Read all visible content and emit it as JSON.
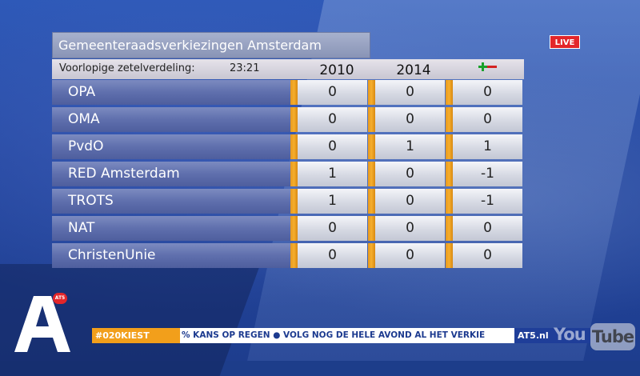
{
  "board": {
    "title": "Gemeenteraadsverkiezingen Amsterdam",
    "subtitle": "Voorlopige zetelverdeling:",
    "time": "23:21",
    "columns": [
      "2010",
      "2014"
    ],
    "delta_icon": "plus-minus-icon",
    "rows": [
      {
        "party": "OPA",
        "v2010": "0",
        "v2014": "0",
        "delta": "0"
      },
      {
        "party": "OMA",
        "v2010": "0",
        "v2014": "0",
        "delta": "0"
      },
      {
        "party": "PvdO",
        "v2010": "0",
        "v2014": "1",
        "delta": "1"
      },
      {
        "party": "RED Amsterdam",
        "v2010": "1",
        "v2014": "0",
        "delta": "-1"
      },
      {
        "party": "TROTS",
        "v2010": "1",
        "v2014": "0",
        "delta": "-1"
      },
      {
        "party": "NAT",
        "v2010": "0",
        "v2014": "0",
        "delta": "0"
      },
      {
        "party": "ChristenUnie",
        "v2010": "0",
        "v2014": "0",
        "delta": "0"
      }
    ]
  },
  "live_badge": "LIVE",
  "logo": {
    "letter_icon": "at5-a-logo-icon",
    "badge": "AT5"
  },
  "ticker": {
    "hashtag": "#020KIEST",
    "text": "% KANS OP REGEN ● VOLG NOG DE HELE AVOND AL HET VERKIE",
    "site": "AT5.nl"
  },
  "watermark": {
    "you": "You",
    "tube": "Tube"
  },
  "colors": {
    "separator": "#f5ad2d",
    "name_cell": "#5f6fad",
    "live": "#e3262a",
    "hashtag_bg": "#f29f1b"
  }
}
